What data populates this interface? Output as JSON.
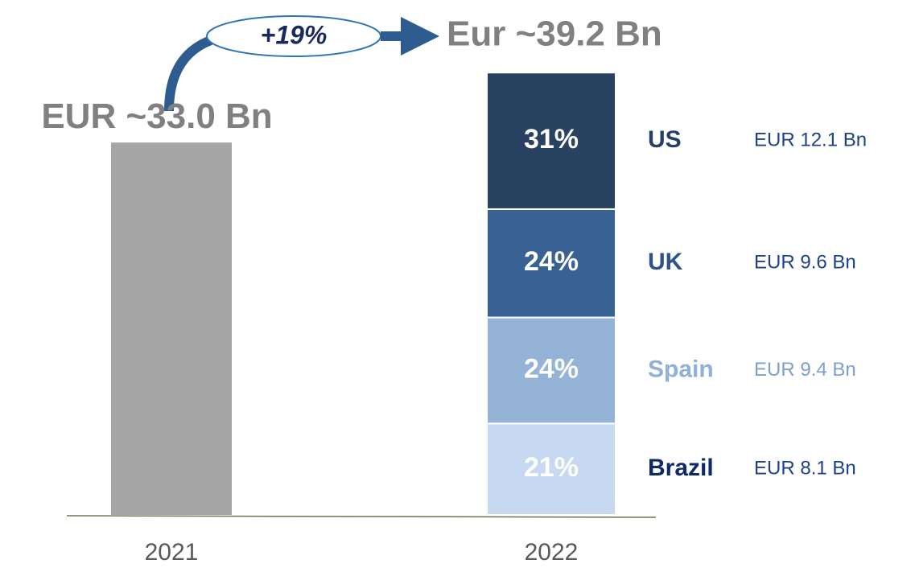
{
  "chart_data": {
    "type": "bar",
    "categories": [
      "2021",
      "2022"
    ],
    "ylim": [
      0,
      40
    ],
    "bar_2021": {
      "value": 33.0,
      "value_label": "EUR ~33.0 Bn",
      "color": "#a6a6a6"
    },
    "total_2022_label": "Eur ~39.2 Bn",
    "growth_label": "+19%",
    "segments": [
      {
        "name": "Brazil",
        "value": 8.1,
        "value_label": "EUR 8.1 Bn",
        "share_label": "21%",
        "color": "#c6d9f1",
        "name_color": "#0f2a6b",
        "label_color": "#1f3f8f"
      },
      {
        "name": "Spain",
        "value": 9.4,
        "value_label": "EUR 9.4 Bn",
        "share_label": "24%",
        "color": "#95b3d7",
        "name_color": "#8eb0d9",
        "label_color": "#7d9fcc"
      },
      {
        "name": "UK",
        "value": 9.6,
        "value_label": "EUR 9.6 Bn",
        "share_label": "24%",
        "color": "#386194",
        "name_color": "#2e5289",
        "label_color": "#1f3f8f"
      },
      {
        "name": "US",
        "value": 12.1,
        "value_label": "EUR 12.1 Bn",
        "share_label": "31%",
        "color": "#2a4262",
        "name_color": "#263f6a",
        "label_color": "#1f3f8f"
      }
    ]
  }
}
